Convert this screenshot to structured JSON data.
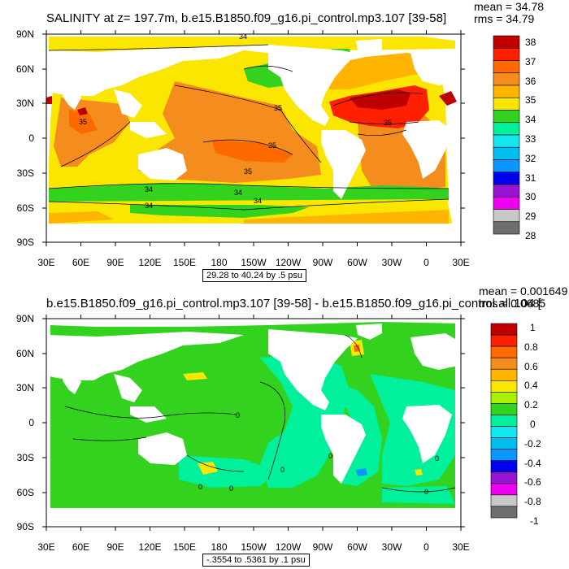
{
  "top_panel": {
    "title": "SALINITY at z= 197.7m, b.e15.B1850.f09_g16.pi_control.mp3.107 [39-58]",
    "mean_text": "mean = 34.78",
    "rms_text": "rms = 34.79",
    "range_text": "29.28 to 40.24 by .5 psu",
    "y_labels": [
      "90N",
      "60N",
      "30N",
      "0",
      "30S",
      "60S",
      "90S"
    ],
    "x_labels": [
      "30E",
      "60E",
      "90E",
      "120E",
      "150E",
      "180",
      "150W",
      "120W",
      "90W",
      "60W",
      "30W",
      "0",
      "30E"
    ],
    "colorbar_labels": [
      "38",
      "37",
      "36",
      "35",
      "34",
      "33",
      "32",
      "31",
      "30",
      "29",
      "28"
    ],
    "colorbar_colors": [
      "#c00000",
      "#ff2000",
      "#ff6a00",
      "#f58c1e",
      "#ffb400",
      "#fae600",
      "#32d21e",
      "#00f09b",
      "#14e6f0",
      "#00bef0",
      "#0a96ff",
      "#0000f0",
      "#9614d2",
      "#f000f0",
      "#c8c8c8",
      "#6e6e6e"
    ],
    "contour_labels": [
      "34",
      "35",
      "35",
      "35",
      "35",
      "34",
      "34",
      "34",
      "35",
      "34"
    ]
  },
  "bottom_panel": {
    "title": "b.e15.B1850.f09_g16.pi_control.mp3.107 [39-58] - b.e15.B1850.f09_g16.pi_control.all.104 [39-58]",
    "mean_text": "mean = 0.001649",
    "rms_text": "rms = 0.0685",
    "range_text": "-.3554 to .5361 by .1 psu",
    "y_labels": [
      "90N",
      "60N",
      "30N",
      "0",
      "30S",
      "60S",
      "90S"
    ],
    "x_labels": [
      "30E",
      "60E",
      "90E",
      "120E",
      "150E",
      "180",
      "150W",
      "120W",
      "90W",
      "60W",
      "30W",
      "0",
      "30E"
    ],
    "colorbar_labels": [
      "1",
      "0.8",
      "0.6",
      "0.4",
      "0.2",
      "0",
      "-0.2",
      "-0.4",
      "-0.6",
      "-0.8",
      "-1"
    ],
    "colorbar_colors": [
      "#c00000",
      "#ff2000",
      "#ff6a00",
      "#f58c1e",
      "#ffb400",
      "#fae600",
      "#aaf000",
      "#32d21e",
      "#00f09b",
      "#14e6f0",
      "#00bef0",
      "#0a96ff",
      "#0000f0",
      "#9614d2",
      "#f000f0",
      "#c8c8c8",
      "#6e6e6e"
    ],
    "contour_labels": [
      "0",
      "0",
      "0",
      "0",
      "0",
      "0",
      "0"
    ]
  }
}
